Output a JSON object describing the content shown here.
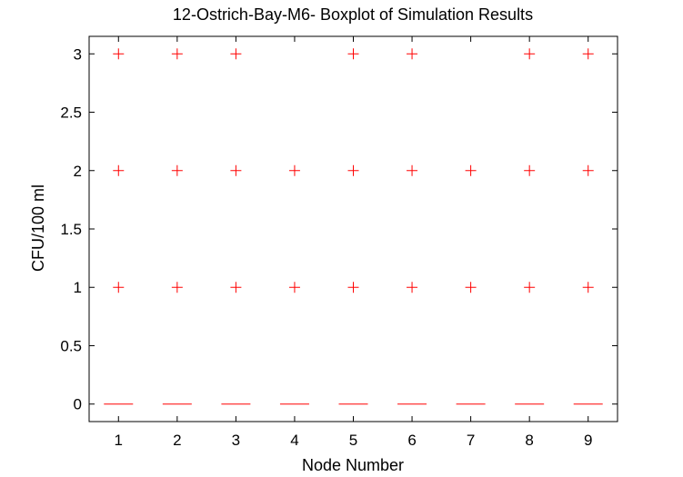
{
  "chart_data": {
    "type": "boxplot",
    "title": "12-Ostrich-Bay-M6- Boxplot of Simulation Results",
    "xlabel": "Node Number",
    "ylabel": "CFU/100 ml",
    "categories": [
      "1",
      "2",
      "3",
      "4",
      "5",
      "6",
      "7",
      "8",
      "9"
    ],
    "xlim": [
      0.5,
      9.5
    ],
    "ylim": [
      -0.15,
      3.15
    ],
    "yticks": [
      0,
      0.5,
      1,
      1.5,
      2,
      2.5,
      3
    ],
    "ytick_labels": [
      "0",
      "0.5",
      "1",
      "1.5",
      "2",
      "2.5",
      "3"
    ],
    "grid": false,
    "legend": "none",
    "median_color": "#ff0000",
    "outlier_color": "#ff0000",
    "series": [
      {
        "node": "1",
        "median": 0,
        "outliers": [
          1,
          2,
          3
        ]
      },
      {
        "node": "2",
        "median": 0,
        "outliers": [
          1,
          2,
          3
        ]
      },
      {
        "node": "3",
        "median": 0,
        "outliers": [
          1,
          2,
          3
        ]
      },
      {
        "node": "4",
        "median": 0,
        "outliers": [
          1,
          2
        ]
      },
      {
        "node": "5",
        "median": 0,
        "outliers": [
          1,
          2,
          3
        ]
      },
      {
        "node": "6",
        "median": 0,
        "outliers": [
          1,
          2,
          3
        ]
      },
      {
        "node": "7",
        "median": 0,
        "outliers": [
          1,
          2
        ]
      },
      {
        "node": "8",
        "median": 0,
        "outliers": [
          1,
          2,
          3
        ]
      },
      {
        "node": "9",
        "median": 0,
        "outliers": [
          1,
          2,
          3
        ]
      }
    ]
  }
}
